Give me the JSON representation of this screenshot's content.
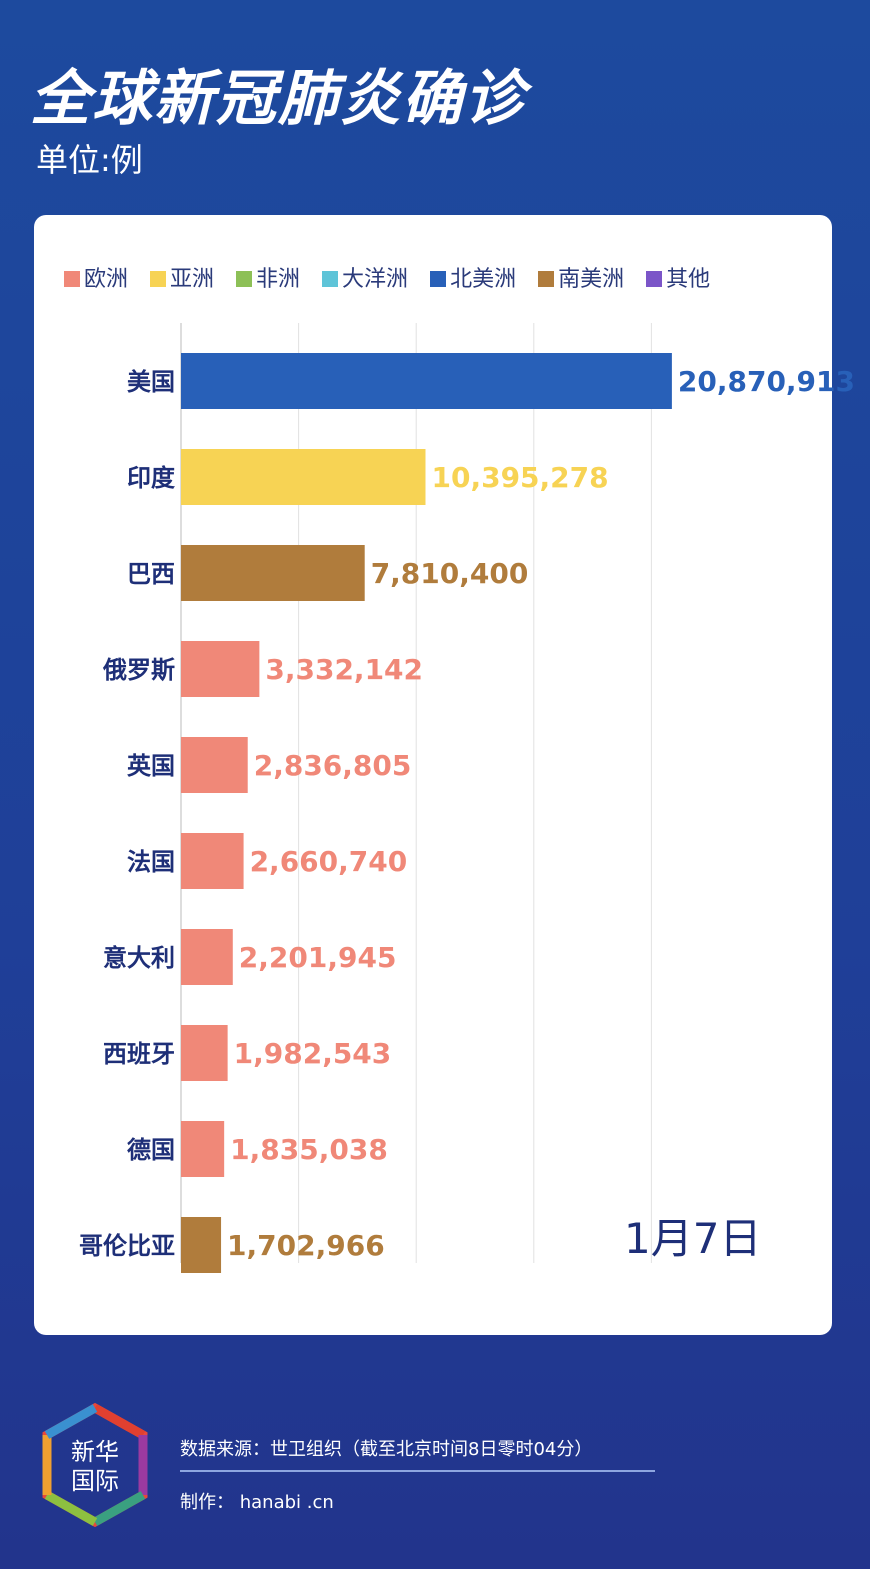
{
  "title": "全球新冠肺炎确诊",
  "unit": "单位:例",
  "date": "1月7日",
  "footer": {
    "source": "数据来源：世卫组织（截至北京时间8日零时04分）",
    "made_by": "制作： hanabi .cn",
    "logo_text": "新华国际"
  },
  "chart_data": {
    "type": "bar",
    "orientation": "horizontal",
    "grid": true,
    "xlim": [
      0,
      25000000
    ],
    "xticks": [
      0,
      5000000,
      10000000,
      15000000,
      20000000
    ],
    "legend": [
      {
        "name": "欧洲",
        "color": "#f08878"
      },
      {
        "name": "亚洲",
        "color": "#f7d354"
      },
      {
        "name": "非洲",
        "color": "#8dc057"
      },
      {
        "name": "大洋洲",
        "color": "#5ec4d8"
      },
      {
        "name": "北美洲",
        "color": "#2860b8"
      },
      {
        "name": "南美洲",
        "color": "#b07c3c"
      },
      {
        "name": "其他",
        "color": "#7b55c8"
      }
    ],
    "legend_placement": "top",
    "categories": [
      "美国",
      "印度",
      "巴西",
      "俄罗斯",
      "英国",
      "法国",
      "意大利",
      "西班牙",
      "德国",
      "哥伦比亚"
    ],
    "labels": [
      "20,870,913",
      "10,395,278",
      "7,810,400",
      "3,332,142",
      "2,836,805",
      "2,660,740",
      "2,201,945",
      "1,982,543",
      "1,835,038",
      "1,702,966"
    ],
    "values": [
      20870913,
      10395278,
      7810400,
      3332142,
      2836805,
      2660740,
      2201945,
      1982543,
      1835038,
      1702966
    ],
    "regions": [
      "北美洲",
      "亚洲",
      "南美洲",
      "欧洲",
      "欧洲",
      "欧洲",
      "欧洲",
      "欧洲",
      "欧洲",
      "南美洲"
    ]
  }
}
